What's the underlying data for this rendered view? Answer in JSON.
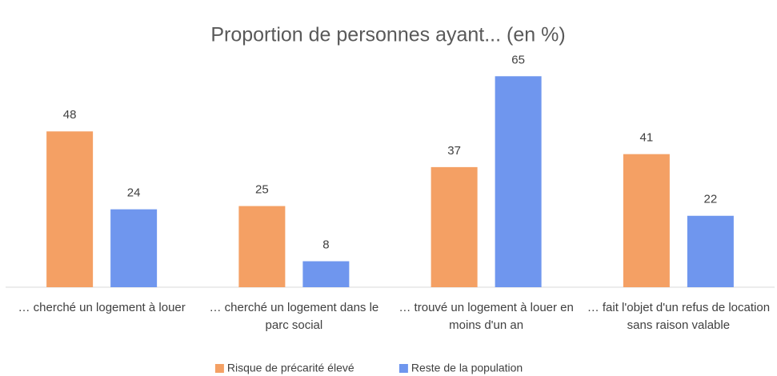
{
  "chart_data": {
    "type": "bar",
    "title": "Proportion de personnes ayant... (en %)",
    "categories": [
      "… cherché un logement à louer",
      "… cherché un logement dans le parc social",
      "… trouvé un logement à louer en moins d'un an",
      "… fait l'objet d'un refus de location sans raison valable"
    ],
    "series": [
      {
        "name": "Risque de précarité élevé",
        "color": "#f4a064",
        "values": [
          48,
          25,
          37,
          41
        ]
      },
      {
        "name": "Reste de la population",
        "color": "#6f96ee",
        "values": [
          24,
          8,
          65,
          22
        ]
      }
    ],
    "ylim": [
      0,
      70
    ],
    "legend": "bottom"
  }
}
